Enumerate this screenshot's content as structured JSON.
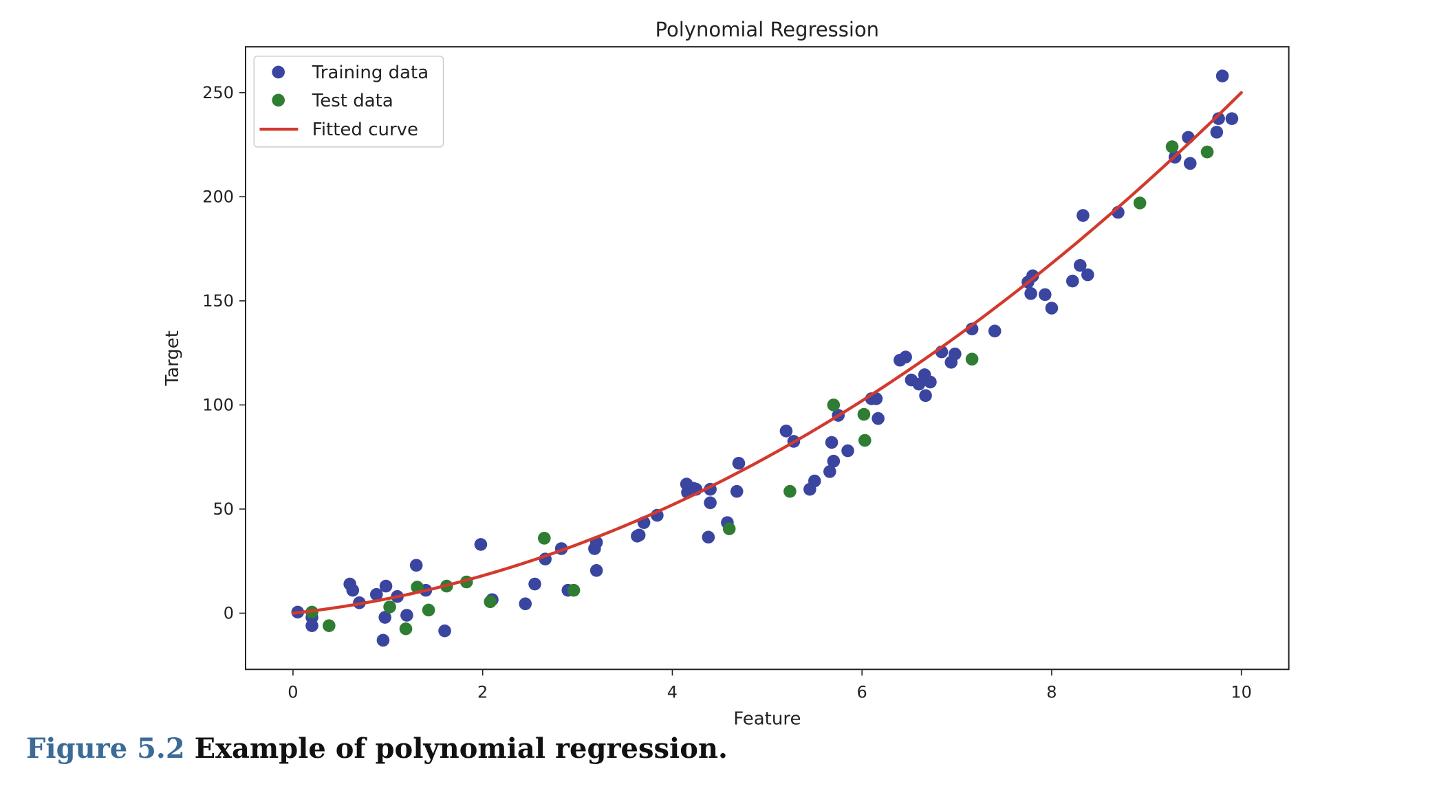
{
  "chart_data": {
    "type": "scatter",
    "title": "Polynomial Regression",
    "xlabel": "Feature",
    "ylabel": "Target",
    "xlim": [
      -0.5,
      10.5
    ],
    "ylim": [
      -27,
      272
    ],
    "xticks": [
      0,
      2,
      4,
      6,
      8,
      10
    ],
    "yticks": [
      0,
      50,
      100,
      150,
      200,
      250
    ],
    "grid": false,
    "legend_position": "upper-left",
    "series": [
      {
        "name": "Training data",
        "kind": "scatter",
        "color": "#3a45a0",
        "points": [
          [
            0.05,
            0.5
          ],
          [
            0.2,
            -2
          ],
          [
            0.2,
            -6
          ],
          [
            0.6,
            14
          ],
          [
            0.63,
            11
          ],
          [
            0.7,
            5
          ],
          [
            0.88,
            9
          ],
          [
            0.95,
            -13
          ],
          [
            0.97,
            -2
          ],
          [
            0.98,
            13
          ],
          [
            1.1,
            8
          ],
          [
            1.2,
            -1
          ],
          [
            1.3,
            23
          ],
          [
            1.4,
            11
          ],
          [
            1.6,
            -8.5
          ],
          [
            1.98,
            33
          ],
          [
            2.1,
            6.5
          ],
          [
            2.45,
            4.5
          ],
          [
            2.55,
            14
          ],
          [
            2.66,
            26
          ],
          [
            2.83,
            31
          ],
          [
            2.9,
            11
          ],
          [
            3.18,
            31
          ],
          [
            3.2,
            34
          ],
          [
            3.2,
            20.5
          ],
          [
            3.63,
            37
          ],
          [
            3.65,
            37.5
          ],
          [
            3.7,
            43.5
          ],
          [
            3.84,
            47
          ],
          [
            4.15,
            62
          ],
          [
            4.16,
            58
          ],
          [
            4.22,
            60
          ],
          [
            4.25,
            59.5
          ],
          [
            4.38,
            36.5
          ],
          [
            4.4,
            59.5
          ],
          [
            4.4,
            53
          ],
          [
            4.58,
            43.5
          ],
          [
            4.68,
            58.5
          ],
          [
            4.7,
            72
          ],
          [
            5.2,
            87.5
          ],
          [
            5.28,
            82.5
          ],
          [
            5.45,
            59.5
          ],
          [
            5.5,
            63.5
          ],
          [
            5.66,
            68
          ],
          [
            5.7,
            73
          ],
          [
            5.68,
            82
          ],
          [
            5.75,
            95
          ],
          [
            5.85,
            78
          ],
          [
            6.1,
            103
          ],
          [
            6.15,
            103
          ],
          [
            6.17,
            93.5
          ],
          [
            6.4,
            121.5
          ],
          [
            6.46,
            123
          ],
          [
            6.52,
            112
          ],
          [
            6.6,
            110
          ],
          [
            6.66,
            114.5
          ],
          [
            6.67,
            104.5
          ],
          [
            6.72,
            111
          ],
          [
            6.84,
            125.5
          ],
          [
            6.94,
            120.5
          ],
          [
            6.98,
            124.5
          ],
          [
            7.16,
            136.5
          ],
          [
            7.4,
            135.5
          ],
          [
            7.75,
            159
          ],
          [
            7.8,
            162
          ],
          [
            7.78,
            153.5
          ],
          [
            7.93,
            153
          ],
          [
            8.0,
            146.5
          ],
          [
            8.22,
            159.5
          ],
          [
            8.3,
            167
          ],
          [
            8.33,
            191
          ],
          [
            8.38,
            162.5
          ],
          [
            8.7,
            192.5
          ],
          [
            9.3,
            219
          ],
          [
            9.44,
            228.5
          ],
          [
            9.46,
            216
          ],
          [
            9.74,
            231
          ],
          [
            9.76,
            237.5
          ],
          [
            9.8,
            258
          ],
          [
            9.9,
            237.5
          ]
        ]
      },
      {
        "name": "Test data",
        "kind": "scatter",
        "color": "#2e7d32",
        "points": [
          [
            0.2,
            0.5
          ],
          [
            0.38,
            -6
          ],
          [
            1.02,
            3
          ],
          [
            1.19,
            -7.5
          ],
          [
            1.31,
            12.5
          ],
          [
            1.43,
            1.5
          ],
          [
            1.62,
            13
          ],
          [
            1.83,
            15
          ],
          [
            2.08,
            5.5
          ],
          [
            2.65,
            36
          ],
          [
            2.96,
            11
          ],
          [
            4.6,
            40.5
          ],
          [
            5.24,
            58.5
          ],
          [
            5.7,
            100
          ],
          [
            6.02,
            95.5
          ],
          [
            6.03,
            83
          ],
          [
            7.16,
            122
          ],
          [
            8.93,
            197
          ],
          [
            9.27,
            224
          ],
          [
            9.64,
            221.5
          ]
        ]
      },
      {
        "name": "Fitted curve",
        "kind": "line",
        "color": "#d23a2e",
        "function": "2.0*x^2 + 5.0*x"
      }
    ]
  },
  "caption": {
    "figure_number": "Figure 5.2",
    "text": "Example of polynomial regression."
  }
}
